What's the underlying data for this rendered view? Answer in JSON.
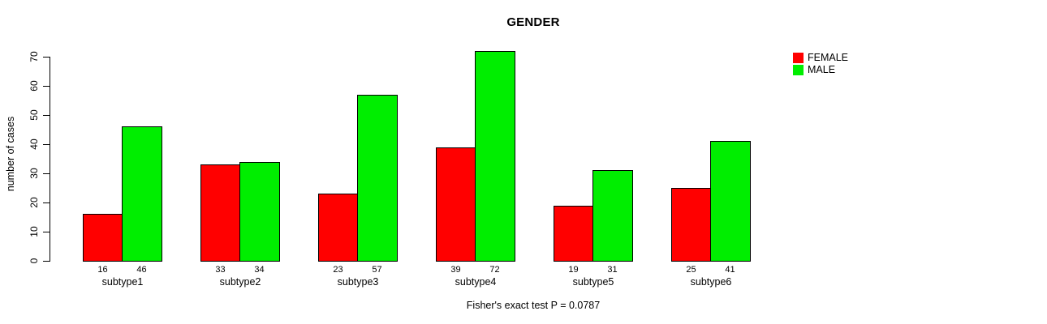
{
  "title": "GENDER",
  "y_axis": {
    "label": "number of cases",
    "ticks": [
      0,
      10,
      20,
      30,
      40,
      50,
      60,
      70
    ]
  },
  "legend": {
    "items": [
      {
        "label": "FEMALE",
        "color": "#ff0000"
      },
      {
        "label": "MALE",
        "color": "#00ee00"
      }
    ]
  },
  "caption": "Fisher's exact test P = 0.0787",
  "chart_data": {
    "type": "bar",
    "title": "GENDER",
    "xlabel": "",
    "ylabel": "number of cases",
    "categories": [
      "subtype1",
      "subtype2",
      "subtype3",
      "subtype4",
      "subtype5",
      "subtype6"
    ],
    "series": [
      {
        "name": "FEMALE",
        "color": "#ff0000",
        "values": [
          16,
          33,
          23,
          39,
          19,
          25
        ]
      },
      {
        "name": "MALE",
        "color": "#00ee00",
        "values": [
          46,
          34,
          57,
          72,
          31,
          41
        ]
      }
    ],
    "bar_value_labels": true,
    "ylim": [
      0,
      70
    ],
    "yticks": [
      0,
      10,
      20,
      30,
      40,
      50,
      60,
      70
    ],
    "grid": false,
    "legend_position": "top-right",
    "annotation": "Fisher's exact test P = 0.0787"
  }
}
